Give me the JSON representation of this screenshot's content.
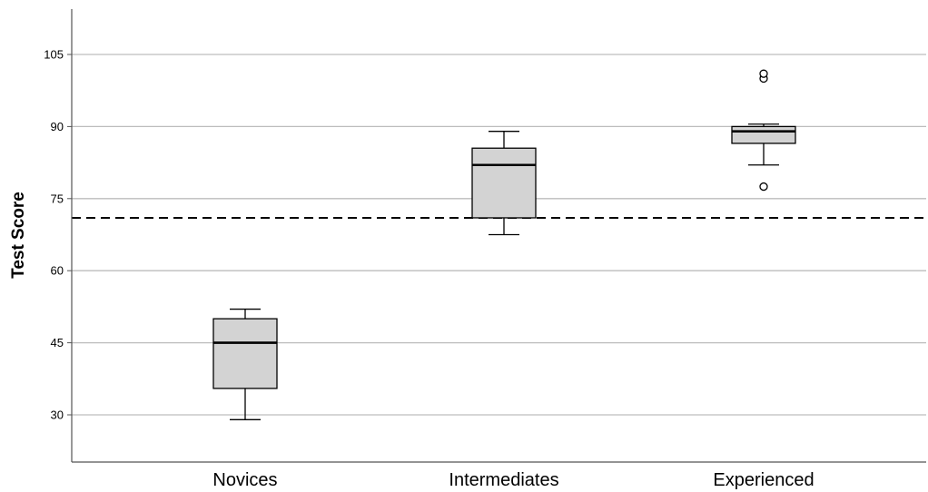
{
  "chart_data": {
    "type": "boxplot",
    "title": "",
    "xlabel": "",
    "ylabel": "Test Score",
    "ylim": [
      20,
      115
    ],
    "yticks": [
      30,
      45,
      60,
      75,
      90,
      105
    ],
    "grid": "horizontal",
    "reference_line": {
      "value": 71,
      "style": "dashed"
    },
    "categories": [
      "Novices",
      "Intermediates",
      "Experienced"
    ],
    "boxes": [
      {
        "category": "Novices",
        "whisker_low": 29,
        "q1": 35.5,
        "median": 45,
        "q3": 50,
        "whisker_high": 52,
        "outliers": []
      },
      {
        "category": "Intermediates",
        "whisker_low": 67.5,
        "q1": 71,
        "median": 82,
        "q3": 85.5,
        "whisker_high": 89,
        "outliers": []
      },
      {
        "category": "Experienced",
        "whisker_low": 82,
        "q1": 86.5,
        "median": 89,
        "q3": 90,
        "whisker_high": 90.5,
        "outliers": [
          77.5,
          100,
          101
        ]
      }
    ],
    "colors": {
      "box_fill": "#d3d3d3",
      "stroke": "#000000",
      "grid": "#bdbdbd",
      "axis": "#555555"
    }
  }
}
